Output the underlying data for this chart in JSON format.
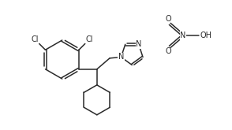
{
  "background": "#ffffff",
  "line_color": "#2a2a2a",
  "line_width": 1.1,
  "font_size": 7.0,
  "fig_width": 2.94,
  "fig_height": 1.65,
  "dpi": 100,
  "xlim": [
    0,
    10.5
  ],
  "ylim": [
    0.5,
    6.2
  ]
}
